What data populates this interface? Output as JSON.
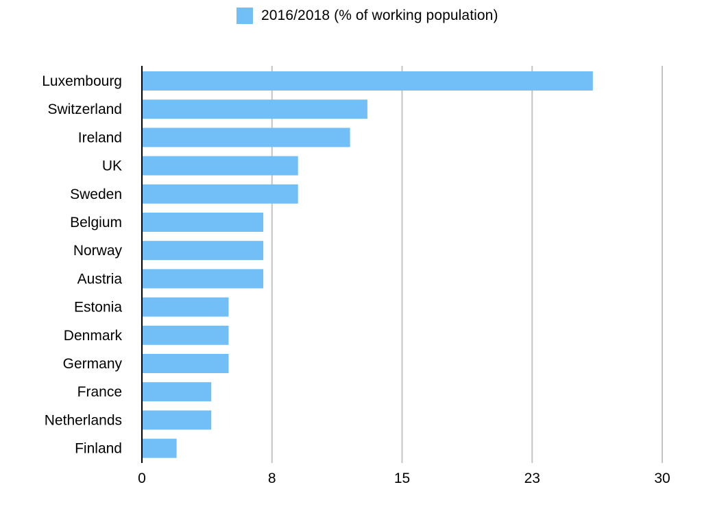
{
  "chart_data": {
    "type": "bar",
    "orientation": "horizontal",
    "categories": [
      "Luxembourg",
      "Switzerland",
      "Ireland",
      "UK",
      "Sweden",
      "Belgium",
      "Norway",
      "Austria",
      "Estonia",
      "Denmark",
      "Germany",
      "France",
      "Netherlands",
      "Finland"
    ],
    "series": [
      {
        "name": "2016/2018 (% of working population)",
        "color": "#72bff8",
        "values": [
          26,
          13,
          12,
          9,
          9,
          7,
          7,
          7,
          5,
          5,
          5,
          4,
          4,
          2
        ]
      }
    ],
    "xlim": [
      0,
      30
    ],
    "x_ticks": [
      "0",
      "8",
      "15",
      "23",
      "30"
    ],
    "grid": true,
    "legend_position": "top",
    "xlabel": "",
    "ylabel": ""
  }
}
